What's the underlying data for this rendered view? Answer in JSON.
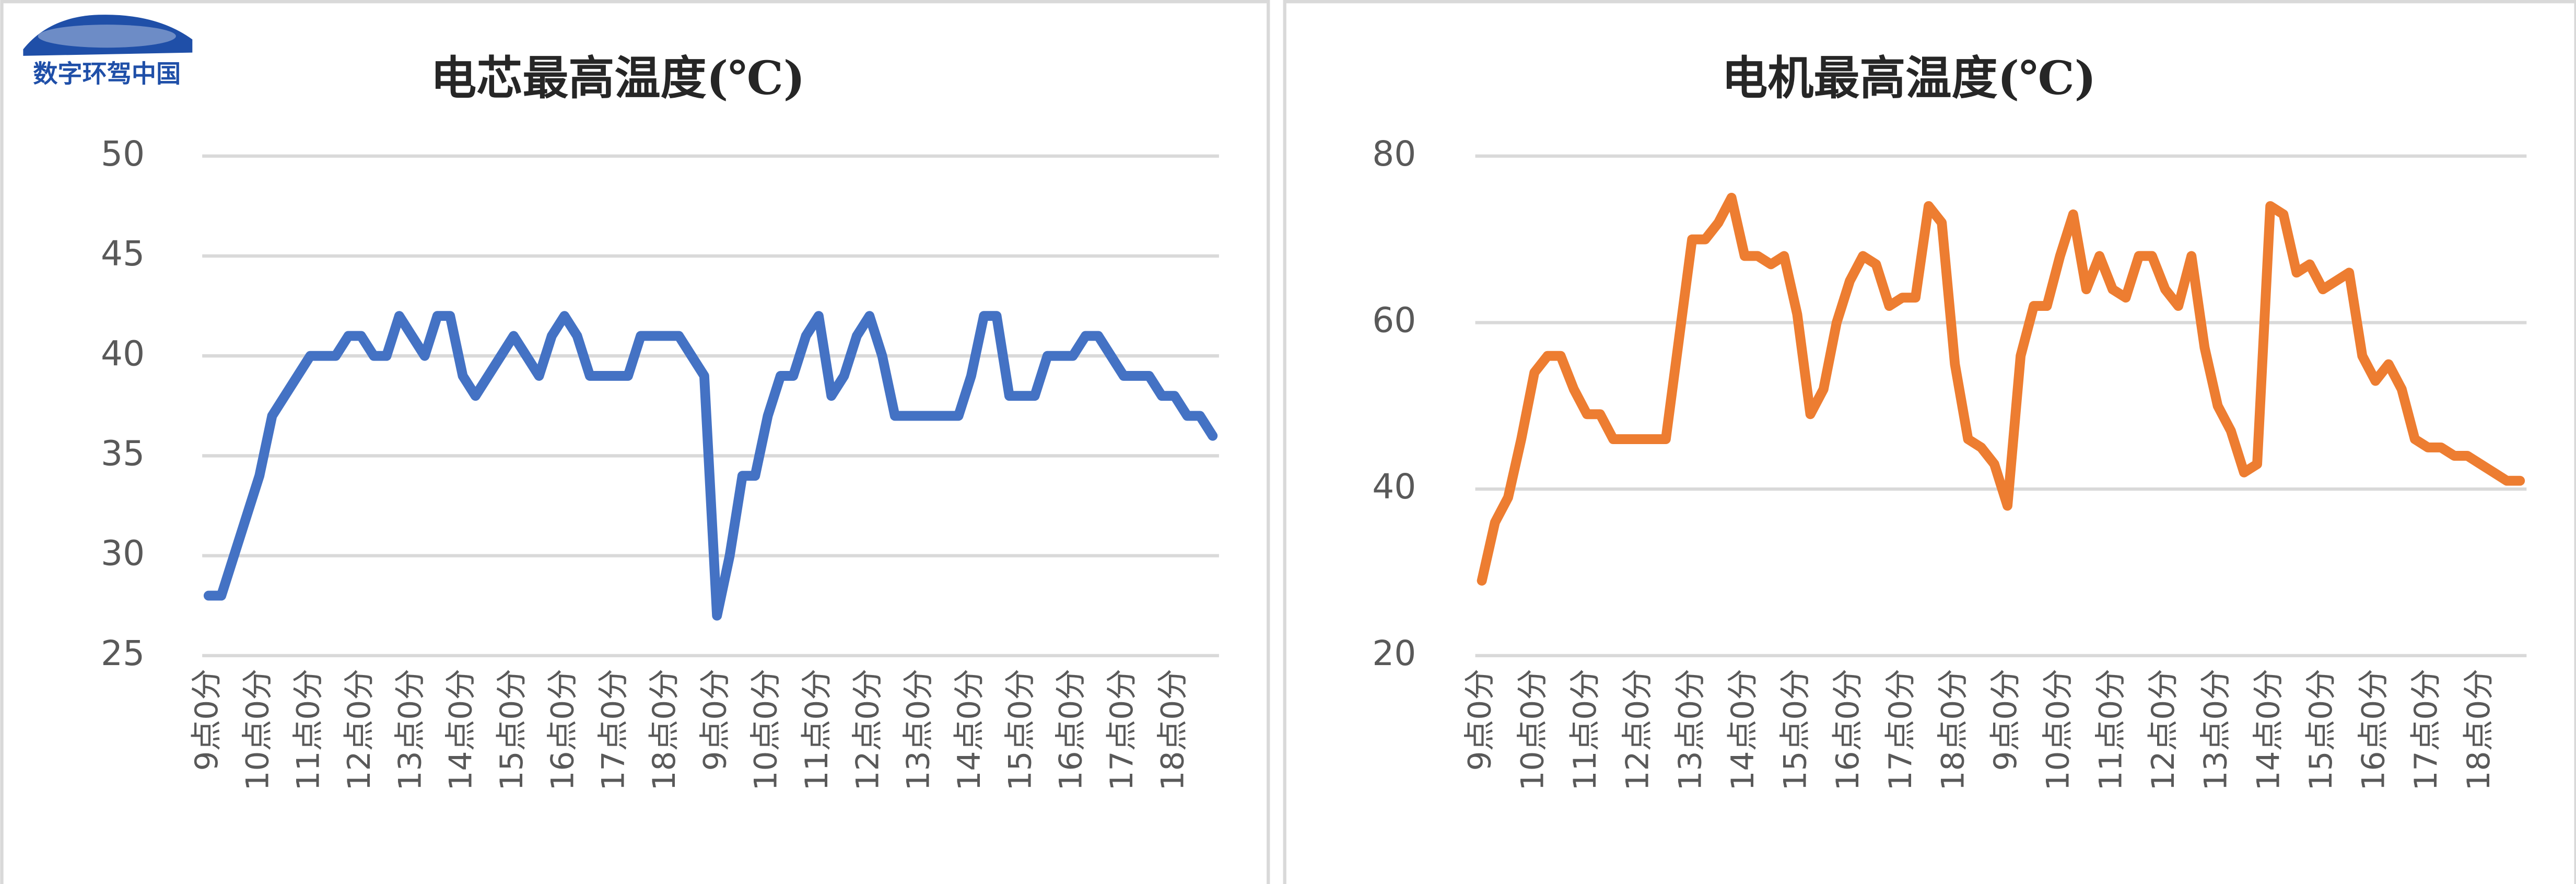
{
  "logo": {
    "text": "数字环驾中国"
  },
  "chart_data": [
    {
      "type": "line",
      "title": "电芯最高温度(℃)",
      "categories": [
        "9点0分",
        null,
        null,
        null,
        "10点0分",
        null,
        null,
        null,
        "11点0分",
        null,
        null,
        null,
        "12点0分",
        null,
        null,
        null,
        "13点0分",
        null,
        null,
        null,
        "14点0分",
        null,
        null,
        null,
        "15点0分",
        null,
        null,
        null,
        "16点0分",
        null,
        null,
        null,
        "17点0分",
        null,
        null,
        null,
        "18点0分",
        null,
        null,
        null,
        "9点0分",
        null,
        null,
        null,
        "10点0分",
        null,
        null,
        null,
        "11点0分",
        null,
        null,
        null,
        "12点0分",
        null,
        null,
        null,
        "13点0分",
        null,
        null,
        null,
        "14点0分",
        null,
        null,
        null,
        "15点0分",
        null,
        null,
        null,
        "16点0分",
        null,
        null,
        null,
        "17点0分",
        null,
        null,
        null,
        "18点0分",
        null,
        null,
        null
      ],
      "values": [
        28,
        28,
        30,
        32,
        34,
        37,
        38,
        39,
        40,
        40,
        40,
        41,
        41,
        40,
        40,
        42,
        41,
        40,
        42,
        42,
        39,
        38,
        39,
        40,
        41,
        40,
        39,
        41,
        42,
        41,
        39,
        39,
        39,
        39,
        41,
        41,
        41,
        41,
        40,
        39,
        27,
        30,
        34,
        34,
        37,
        39,
        39,
        41,
        42,
        38,
        39,
        41,
        42,
        40,
        37,
        37,
        37,
        37,
        37,
        37,
        39,
        42,
        42,
        38,
        38,
        38,
        40,
        40,
        40,
        41,
        41,
        40,
        39,
        39,
        39,
        38,
        38,
        37,
        37,
        36
      ],
      "color": "#4472c4",
      "ylim": [
        25,
        50
      ],
      "yticks": [
        25,
        30,
        35,
        40,
        45,
        50
      ],
      "grid": true
    },
    {
      "type": "line",
      "title": "电机最高温度(℃)",
      "categories": [
        "9点0分",
        null,
        null,
        null,
        "10点0分",
        null,
        null,
        null,
        "11点0分",
        null,
        null,
        null,
        "12点0分",
        null,
        null,
        null,
        "13点0分",
        null,
        null,
        null,
        "14点0分",
        null,
        null,
        null,
        "15点0分",
        null,
        null,
        null,
        "16点0分",
        null,
        null,
        null,
        "17点0分",
        null,
        null,
        null,
        "18点0分",
        null,
        null,
        null,
        "9点0分",
        null,
        null,
        null,
        "10点0分",
        null,
        null,
        null,
        "11点0分",
        null,
        null,
        null,
        "12点0分",
        null,
        null,
        null,
        "13点0分",
        null,
        null,
        null,
        "14点0分",
        null,
        null,
        null,
        "15点0分",
        null,
        null,
        null,
        "16点0分",
        null,
        null,
        null,
        "17点0分",
        null,
        null,
        null,
        "18点0分",
        null,
        null,
        null
      ],
      "values": [
        29,
        36,
        39,
        46,
        54,
        56,
        56,
        52,
        49,
        49,
        46,
        46,
        46,
        46,
        46,
        58,
        70,
        70,
        72,
        75,
        68,
        68,
        67,
        68,
        61,
        49,
        52,
        60,
        65,
        68,
        67,
        62,
        63,
        63,
        74,
        72,
        55,
        46,
        45,
        43,
        38,
        56,
        62,
        62,
        68,
        73,
        64,
        68,
        64,
        63,
        68,
        68,
        64,
        62,
        68,
        57,
        50,
        47,
        42,
        43,
        74,
        73,
        66,
        67,
        64,
        65,
        66,
        56,
        53,
        55,
        52,
        46,
        45,
        45,
        44,
        44,
        43,
        42,
        41,
        41
      ],
      "color": "#ed7d31",
      "ylim": [
        20,
        80
      ],
      "yticks": [
        20,
        40,
        60,
        80
      ],
      "grid": true
    }
  ]
}
